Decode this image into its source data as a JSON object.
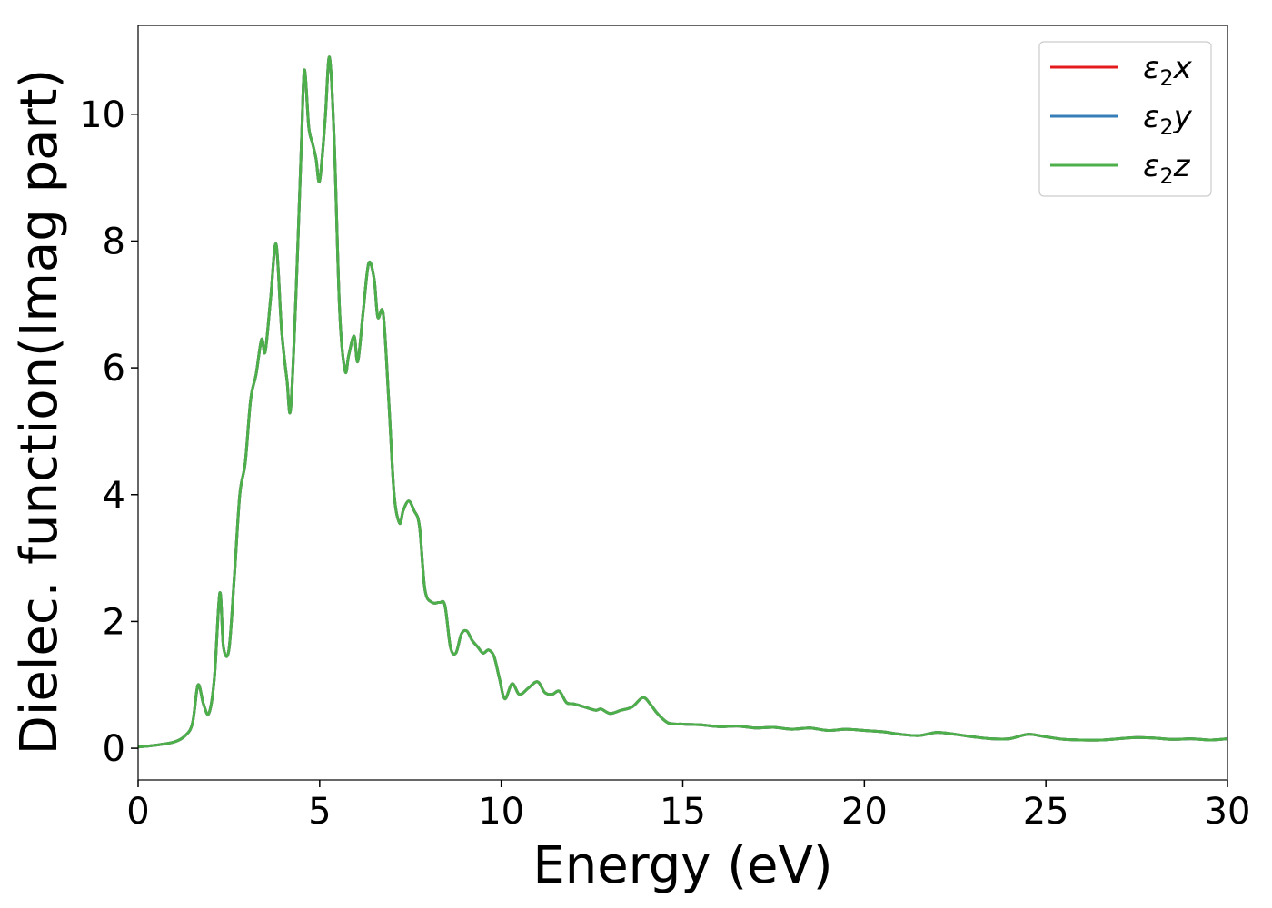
{
  "chart_data": {
    "type": "line",
    "xlabel": "Energy (eV)",
    "ylabel": "Dielec. function(Imag part)",
    "xlim": [
      0,
      30
    ],
    "ylim": [
      -0.5,
      11.4
    ],
    "xticks": [
      0,
      5,
      10,
      15,
      20,
      25,
      30
    ],
    "yticks": [
      0,
      2,
      4,
      6,
      8,
      10
    ],
    "grid": false,
    "legend_position": "top-right",
    "series": [
      {
        "name": "ε2x",
        "base": "ε",
        "sub": "2",
        "axis": "x",
        "color": "#e41a1c"
      },
      {
        "name": "ε2y",
        "base": "ε",
        "sub": "2",
        "axis": "y",
        "color": "#377eb8"
      },
      {
        "name": "ε2z",
        "base": "ε",
        "sub": "2",
        "axis": "z",
        "color": "#4daf4a"
      }
    ],
    "x": [
      0,
      0.5,
      1.0,
      1.3,
      1.5,
      1.65,
      1.8,
      1.95,
      2.1,
      2.25,
      2.35,
      2.5,
      2.65,
      2.8,
      2.95,
      3.1,
      3.25,
      3.4,
      3.5,
      3.65,
      3.8,
      3.95,
      4.1,
      4.2,
      4.35,
      4.5,
      4.58,
      4.7,
      4.8,
      4.9,
      5.0,
      5.15,
      5.27,
      5.4,
      5.55,
      5.7,
      5.8,
      5.95,
      6.05,
      6.2,
      6.35,
      6.5,
      6.6,
      6.75,
      6.9,
      7.05,
      7.2,
      7.3,
      7.45,
      7.6,
      7.75,
      7.9,
      8.1,
      8.3,
      8.45,
      8.6,
      8.75,
      8.9,
      9.05,
      9.2,
      9.35,
      9.5,
      9.65,
      9.8,
      9.95,
      10.1,
      10.3,
      10.5,
      10.75,
      11.0,
      11.2,
      11.4,
      11.6,
      11.8,
      12.0,
      12.3,
      12.6,
      12.75,
      13.0,
      13.3,
      13.6,
      13.9,
      14.1,
      14.3,
      14.6,
      15.0,
      15.5,
      16.0,
      16.5,
      17.0,
      17.5,
      18.0,
      18.5,
      19.0,
      19.5,
      20.0,
      20.5,
      21.0,
      21.5,
      22.0,
      22.5,
      23.0,
      23.5,
      24.0,
      24.5,
      25.0,
      25.5,
      26.0,
      26.5,
      27.0,
      27.5,
      28.0,
      28.5,
      29.0,
      29.5,
      30.0
    ],
    "values": [
      0.02,
      0.05,
      0.1,
      0.2,
      0.4,
      1.0,
      0.7,
      0.55,
      1.1,
      2.45,
      1.6,
      1.55,
      2.7,
      4.0,
      4.5,
      5.5,
      5.9,
      6.45,
      6.25,
      7.1,
      7.95,
      6.6,
      5.8,
      5.35,
      7.2,
      9.6,
      10.7,
      9.8,
      9.55,
      9.3,
      8.95,
      9.9,
      10.9,
      9.6,
      6.9,
      5.95,
      6.2,
      6.5,
      6.1,
      6.9,
      7.65,
      7.4,
      6.8,
      6.85,
      5.5,
      4.0,
      3.55,
      3.75,
      3.9,
      3.75,
      3.5,
      2.5,
      2.3,
      2.3,
      2.25,
      1.6,
      1.5,
      1.8,
      1.85,
      1.7,
      1.6,
      1.5,
      1.55,
      1.45,
      1.1,
      0.78,
      1.02,
      0.85,
      0.95,
      1.05,
      0.88,
      0.85,
      0.9,
      0.72,
      0.7,
      0.65,
      0.6,
      0.62,
      0.55,
      0.6,
      0.65,
      0.8,
      0.7,
      0.55,
      0.4,
      0.38,
      0.37,
      0.34,
      0.35,
      0.32,
      0.33,
      0.3,
      0.32,
      0.28,
      0.3,
      0.28,
      0.26,
      0.22,
      0.2,
      0.25,
      0.22,
      0.18,
      0.15,
      0.15,
      0.22,
      0.18,
      0.14,
      0.13,
      0.13,
      0.15,
      0.17,
      0.16,
      0.14,
      0.15,
      0.13,
      0.15
    ]
  }
}
